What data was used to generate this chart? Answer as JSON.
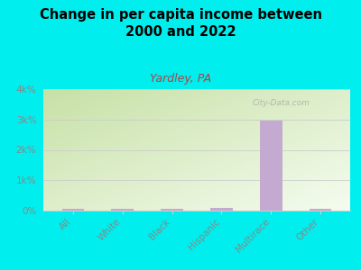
{
  "title": "Change in per capita income between\n2000 and 2022",
  "subtitle": "Yardley, PA",
  "categories": [
    "All",
    "White",
    "Black",
    "Hispanic",
    "Multirace",
    "Other"
  ],
  "values": [
    70,
    50,
    60,
    80,
    2950,
    65
  ],
  "bar_color": "#c4aad0",
  "background_color": "#00eeee",
  "plot_bg_color_top_left": "#c8dda8",
  "plot_bg_color_bottom_right": "#f0f9e8",
  "title_fontsize": 10.5,
  "title_fontweight": "bold",
  "subtitle_fontsize": 9,
  "subtitle_color": "#aa4444",
  "tick_color": "#888888",
  "label_color": "#888888",
  "ylim": [
    0,
    4000
  ],
  "yticks": [
    0,
    1000,
    2000,
    3000,
    4000
  ],
  "ytick_labels": [
    "0%",
    "1k%",
    "2k%",
    "3k%",
    "4k%"
  ],
  "watermark": "City-Data.com",
  "watermark_color": "#aaaaaa",
  "grid_color": "#cccccc"
}
